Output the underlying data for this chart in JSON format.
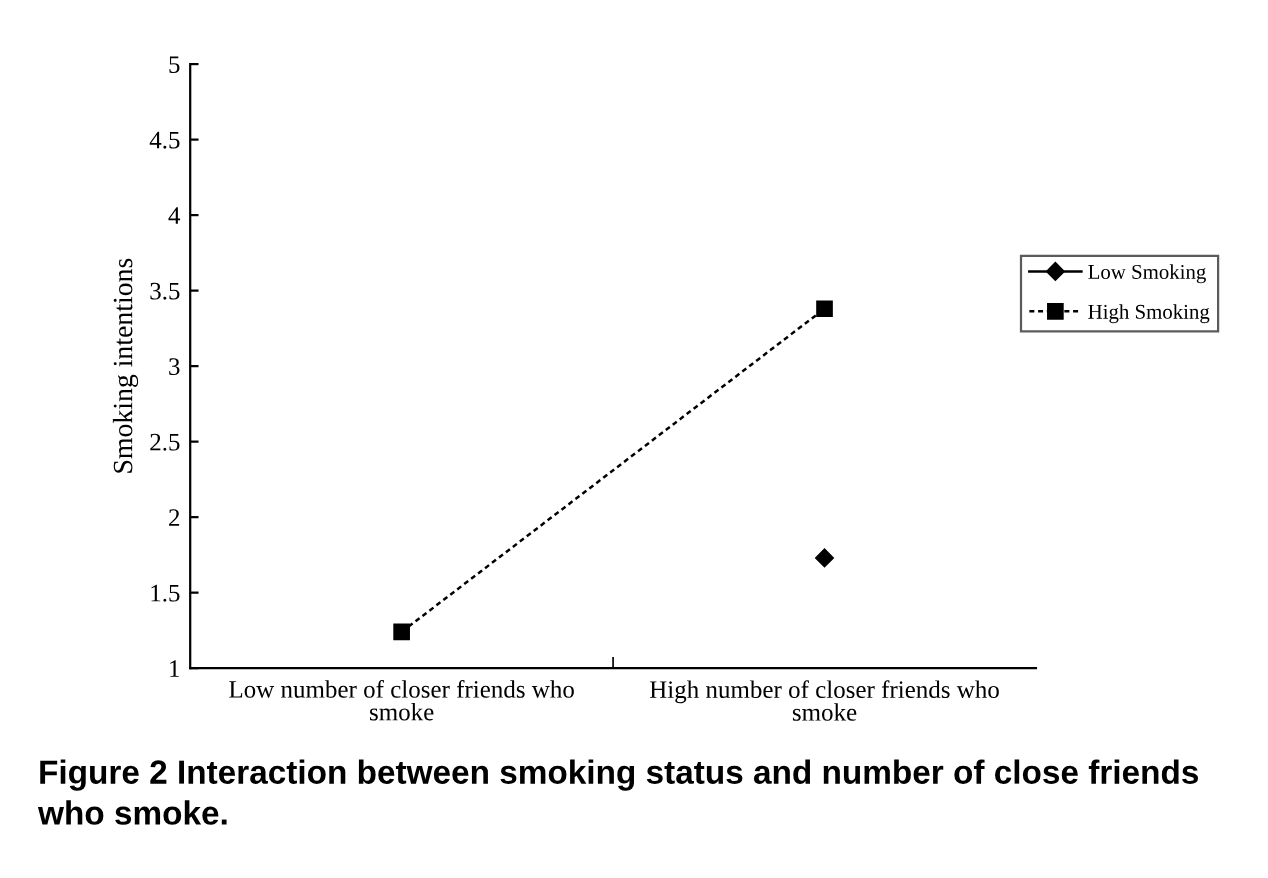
{
  "chart_data": {
    "type": "line",
    "ylabel": "Smoking intentions",
    "categories": [
      "Low number of closer friends who smoke",
      "High number of closer friends who smoke"
    ],
    "series": [
      {
        "name": "Low Smoking",
        "color": "#000000",
        "values": [
          null,
          1.73
        ],
        "marker": "diamond",
        "line_style": "solid"
      },
      {
        "name": "High Smoking",
        "color": "#000000",
        "values": [
          1.24,
          3.38
        ],
        "marker": "square",
        "line_style": "dashed"
      }
    ],
    "ylim": [
      1,
      5
    ],
    "yticks": [
      1,
      1.5,
      2,
      2.5,
      3,
      3.5,
      4,
      4.5,
      5
    ],
    "grid": false,
    "legend": "right",
    "annotations": [
      "Figure 2 Interaction between smoking status and number of close friends who smoke."
    ]
  }
}
